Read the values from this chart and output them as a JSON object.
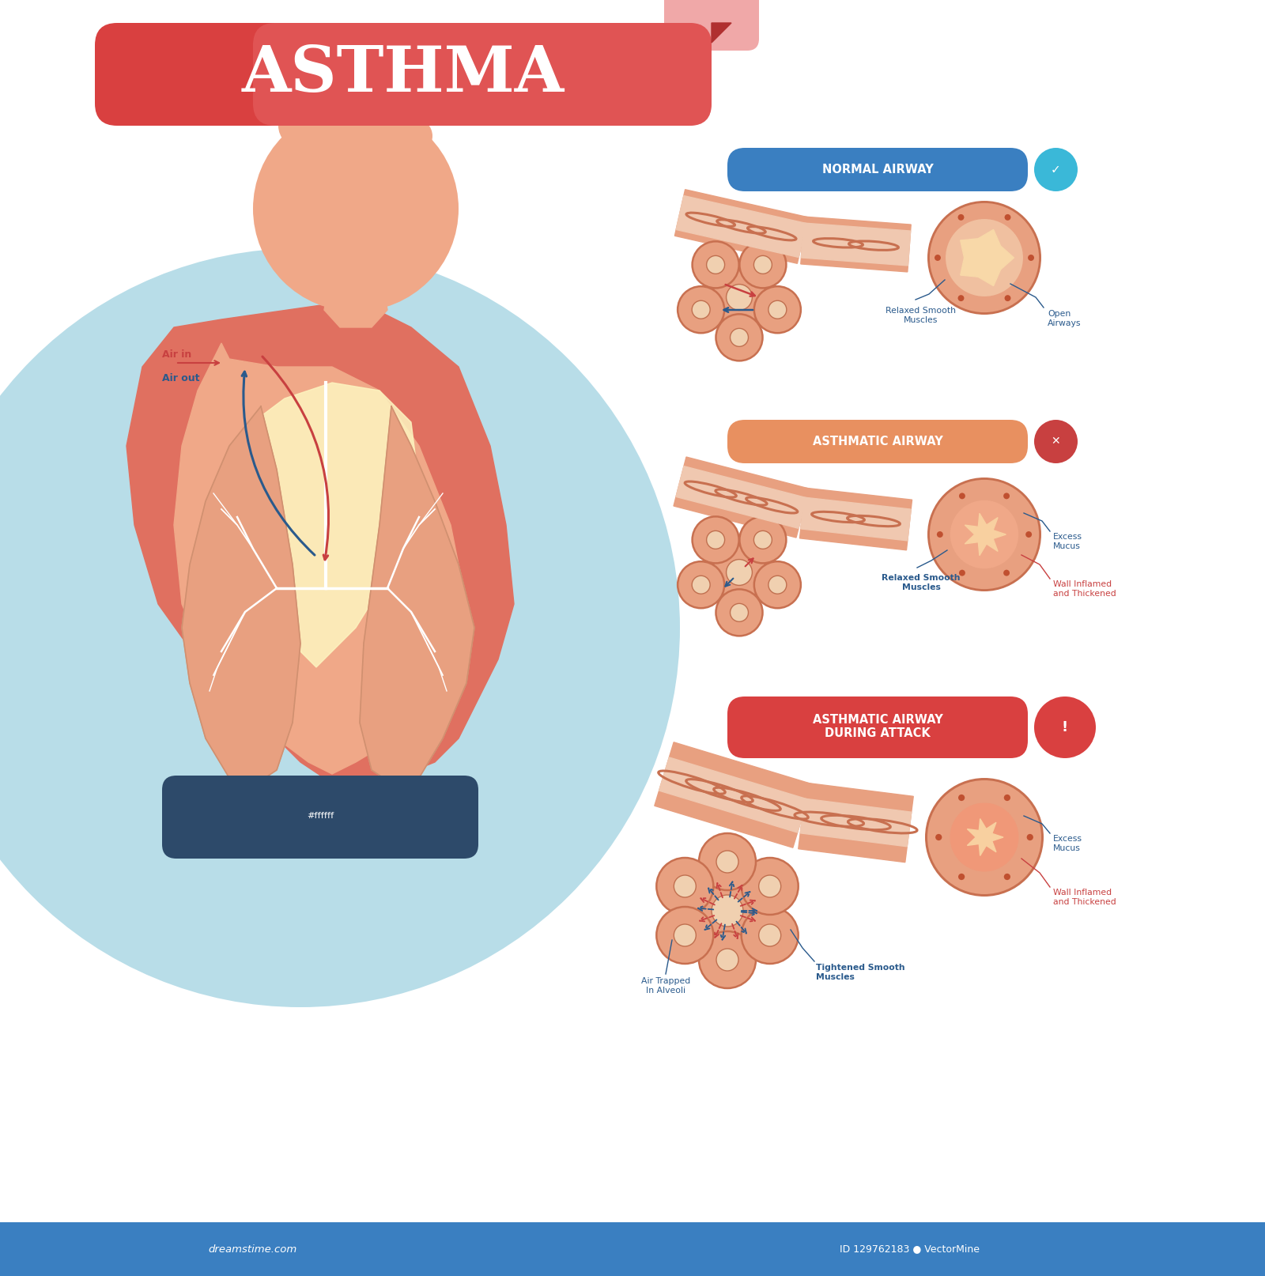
{
  "title": "ASTHMA",
  "bg_color": "#ffffff",
  "circle_bg": "#b8dde8",
  "skin_color": "#f0a888",
  "skin_dark": "#e89070",
  "skin_pink": "#e07060",
  "lung_color": "#e8a080",
  "lung_bronchi": "#ffffff",
  "title_bg": "#d94040",
  "title_text": "#ffffff",
  "section1_label": "NORMAL AIRWAY",
  "section1_bg": "#3a7fc1",
  "section1_icon_color": "#3ab8d8",
  "section2_label": "ASTHMATIC AIRWAY",
  "section2_bg": "#e89060",
  "section2_icon_color": "#c84040",
  "section3_label": "ASTHMATIC AIRWAY\nDURING ATTACK",
  "section3_bg": "#d94040",
  "section3_icon_color": "#d94040",
  "tube_outer": "#e8a080",
  "tube_ring": "#c87050",
  "tube_inner": "#f0c8b0",
  "cross_outer": "#e8a080",
  "cross_ring": "#c87050",
  "cross_wall": "#f0b090",
  "cross_lumen_normal": "#f8d8a8",
  "cross_lumen_sick": "#f8d0a0",
  "alveoli_color": "#e8a080",
  "alveoli_ring": "#c87050",
  "alveoli_inner": "#f0d0b0",
  "arrow_in": "#c84040",
  "arrow_out": "#2a5a8c",
  "annot_color": "#2a5a8c",
  "annot_red": "#c84040",
  "info_bg": "#2d4a6a",
  "info_text": "#ffffff",
  "footer_bg": "#3a7fc1",
  "footer_text_color": "#ffffff",
  "yellow_glow": "#fdf5c0"
}
